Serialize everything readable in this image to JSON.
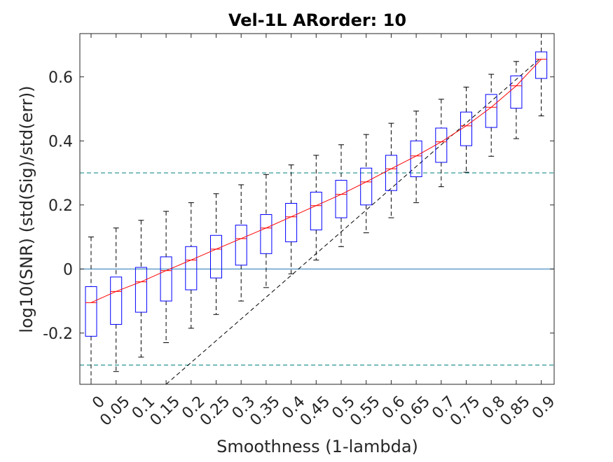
{
  "chart_data": {
    "type": "box",
    "title": "Vel-1L ARorder: 10",
    "xlabel": "Smoothness (1-lambda)",
    "ylabel": "log10(SNR) (std(Sig)/std(err))",
    "categories": [
      "0",
      "0.05",
      "0.1",
      "0.15",
      "0.2",
      "0.25",
      "0.3",
      "0.35",
      "0.4",
      "0.45",
      "0.5",
      "0.55",
      "0.6",
      "0.65",
      "0.7",
      "0.75",
      "0.8",
      "0.85",
      "0.9"
    ],
    "yticks": [
      "-0.2",
      "0",
      "0.2",
      "0.4",
      "0.6"
    ],
    "ylim": [
      -0.36,
      0.735
    ],
    "boxes": [
      {
        "whisker_low": -0.36,
        "q1": -0.21,
        "median": -0.105,
        "q3": -0.055,
        "whisker_high": 0.1
      },
      {
        "whisker_low": -0.32,
        "q1": -0.173,
        "median": -0.07,
        "q3": -0.025,
        "whisker_high": 0.128
      },
      {
        "whisker_low": -0.275,
        "q1": -0.135,
        "median": -0.04,
        "q3": 0.005,
        "whisker_high": 0.152
      },
      {
        "whisker_low": -0.23,
        "q1": -0.1,
        "median": -0.005,
        "q3": 0.038,
        "whisker_high": 0.18
      },
      {
        "whisker_low": -0.185,
        "q1": -0.065,
        "median": 0.028,
        "q3": 0.07,
        "whisker_high": 0.207
      },
      {
        "whisker_low": -0.142,
        "q1": -0.028,
        "median": 0.062,
        "q3": 0.105,
        "whisker_high": 0.235
      },
      {
        "whisker_low": -0.1,
        "q1": 0.012,
        "median": 0.095,
        "q3": 0.137,
        "whisker_high": 0.263
      },
      {
        "whisker_low": -0.058,
        "q1": 0.048,
        "median": 0.128,
        "q3": 0.17,
        "whisker_high": 0.295
      },
      {
        "whisker_low": -0.015,
        "q1": 0.085,
        "median": 0.163,
        "q3": 0.205,
        "whisker_high": 0.325
      },
      {
        "whisker_low": 0.028,
        "q1": 0.122,
        "median": 0.198,
        "q3": 0.24,
        "whisker_high": 0.355
      },
      {
        "whisker_low": 0.07,
        "q1": 0.16,
        "median": 0.233,
        "q3": 0.277,
        "whisker_high": 0.388
      },
      {
        "whisker_low": 0.113,
        "q1": 0.2,
        "median": 0.272,
        "q3": 0.315,
        "whisker_high": 0.42
      },
      {
        "whisker_low": 0.16,
        "q1": 0.245,
        "median": 0.313,
        "q3": 0.355,
        "whisker_high": 0.455
      },
      {
        "whisker_low": 0.207,
        "q1": 0.288,
        "median": 0.353,
        "q3": 0.4,
        "whisker_high": 0.493
      },
      {
        "whisker_low": 0.257,
        "q1": 0.333,
        "median": 0.397,
        "q3": 0.44,
        "whisker_high": 0.53
      },
      {
        "whisker_low": 0.302,
        "q1": 0.385,
        "median": 0.447,
        "q3": 0.49,
        "whisker_high": 0.568
      },
      {
        "whisker_low": 0.352,
        "q1": 0.442,
        "median": 0.505,
        "q3": 0.545,
        "whisker_high": 0.608
      },
      {
        "whisker_low": 0.407,
        "q1": 0.502,
        "median": 0.572,
        "q3": 0.603,
        "whisker_high": 0.648
      },
      {
        "whisker_low": 0.478,
        "q1": 0.595,
        "median": 0.655,
        "q3": 0.678,
        "whisker_high": 0.735
      }
    ],
    "reference_lines": [
      {
        "kind": "horizontal",
        "y": 0,
        "color": "#1f77b4",
        "style": "solid"
      },
      {
        "kind": "horizontal",
        "y": 0.3,
        "color": "#008080",
        "style": "dashed"
      },
      {
        "kind": "horizontal",
        "y": -0.3,
        "color": "#008080",
        "style": "dashed"
      },
      {
        "kind": "diagonal",
        "from": {
          "category_index": 3,
          "y": -0.36
        },
        "to": {
          "category_index": 18,
          "y": 0.66
        },
        "color": "#000000",
        "style": "dashed"
      }
    ],
    "median_line_color": "#ff0000",
    "box_color": "#0000ff",
    "grid": false,
    "legend": "none"
  }
}
